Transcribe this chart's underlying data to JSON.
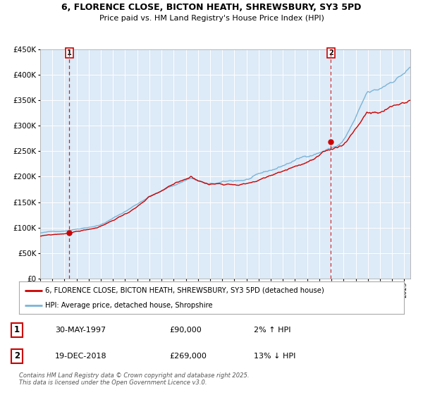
{
  "title_line1": "6, FLORENCE CLOSE, BICTON HEATH, SHREWSBURY, SY3 5PD",
  "title_line2": "Price paid vs. HM Land Registry's House Price Index (HPI)",
  "bg_color": "#ddeaf7",
  "hpi_color": "#7ab4d8",
  "price_color": "#cc0000",
  "marker_color": "#cc0000",
  "dashed_line_color": "#cc0000",
  "ylim": [
    0,
    450000
  ],
  "yticks": [
    0,
    50000,
    100000,
    150000,
    200000,
    250000,
    300000,
    350000,
    400000,
    450000
  ],
  "sale1_date": "30-MAY-1997",
  "sale1_price": 90000,
  "sale1_pct": "2%",
  "sale1_dir": "↑",
  "sale1_year": 1997.41,
  "sale2_date": "19-DEC-2018",
  "sale2_price": 269000,
  "sale2_pct": "13%",
  "sale2_dir": "↓",
  "sale2_year": 2018.96,
  "legend_label1": "6, FLORENCE CLOSE, BICTON HEATH, SHREWSBURY, SY3 5PD (detached house)",
  "legend_label2": "HPI: Average price, detached house, Shropshire",
  "footnote": "Contains HM Land Registry data © Crown copyright and database right 2025.\nThis data is licensed under the Open Government Licence v3.0.",
  "marker1_value": 90000,
  "marker2_value": 269000,
  "start_year": 1995,
  "end_year": 2025
}
